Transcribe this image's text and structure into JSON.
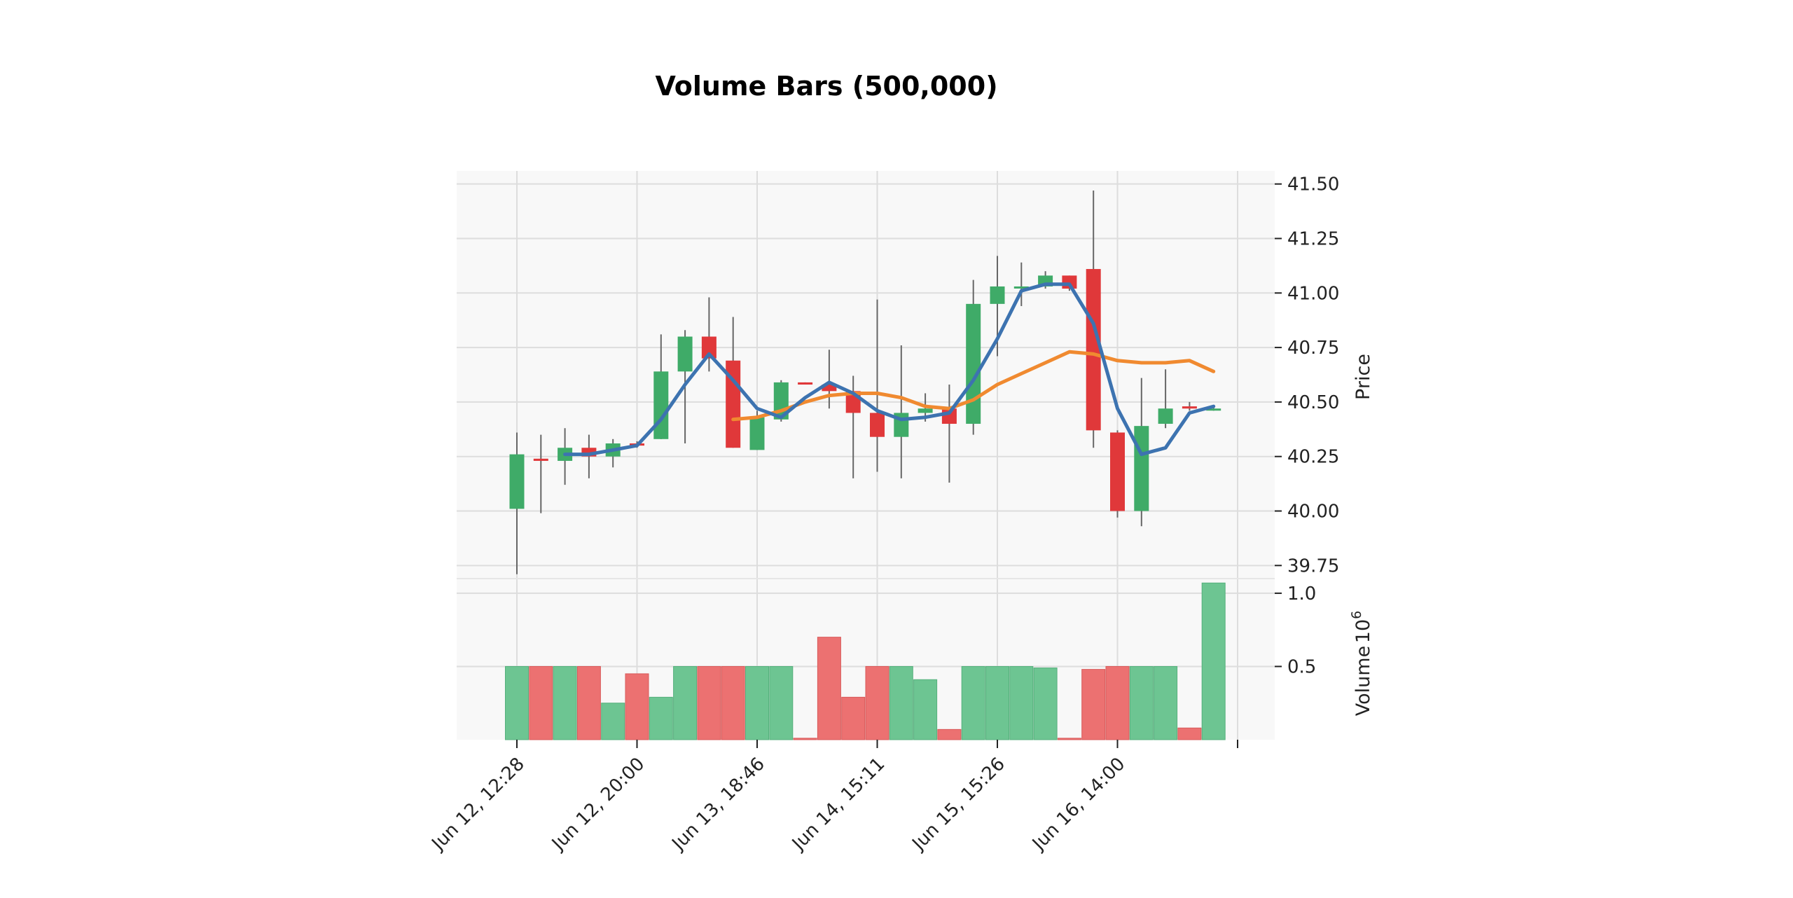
{
  "chart_data": {
    "type": "candlestick",
    "title": "Volume Bars (500,000)",
    "price_ylabel": "Price",
    "volume_ylabel": "Volume",
    "volume_exponent": "10",
    "volume_exponent_power": "6",
    "price_ylim": [
      39.69,
      41.56
    ],
    "price_ticks": [
      "39.75",
      "40.00",
      "40.25",
      "40.50",
      "40.75",
      "41.00",
      "41.25",
      "41.50"
    ],
    "volume_ylim": [
      0,
      1.1
    ],
    "volume_ticks": [
      "0.5",
      "1.0"
    ],
    "x_tick_labels": [
      "Jun 12, 12:28",
      "Jun 12, 20:00",
      "Jun 13, 18:46",
      "Jun 14, 15:11",
      "Jun 15, 15:26",
      "Jun 16, 14:00"
    ],
    "x_tick_bar_index": [
      0,
      5,
      10,
      15,
      20,
      25
    ],
    "grid": true,
    "colors": {
      "up": "#3fab68",
      "down": "#e0383a",
      "up_volume": "#6dc592",
      "down_volume": "#ec7171",
      "ma_short": "#3d73b0",
      "ma_long": "#f08a30",
      "wick": "#666666",
      "axes_bg": "#f8f8f8",
      "grid": "#dddddd"
    },
    "candles": [
      {
        "o": 40.01,
        "h": 40.36,
        "l": 39.71,
        "c": 40.26,
        "v": 0.5
      },
      {
        "o": 40.24,
        "h": 40.35,
        "l": 39.99,
        "c": 40.23,
        "v": 0.5
      },
      {
        "o": 40.23,
        "h": 40.38,
        "l": 40.12,
        "c": 40.29,
        "v": 0.5
      },
      {
        "o": 40.29,
        "h": 40.35,
        "l": 40.15,
        "c": 40.25,
        "v": 0.5
      },
      {
        "o": 40.25,
        "h": 40.33,
        "l": 40.2,
        "c": 40.31,
        "v": 0.25
      },
      {
        "o": 40.31,
        "h": 40.32,
        "l": 40.29,
        "c": 40.3,
        "v": 0.45
      },
      {
        "o": 40.33,
        "h": 40.81,
        "l": 40.33,
        "c": 40.64,
        "v": 0.29
      },
      {
        "o": 40.64,
        "h": 40.83,
        "l": 40.31,
        "c": 40.8,
        "v": 0.5
      },
      {
        "o": 40.8,
        "h": 40.98,
        "l": 40.64,
        "c": 40.7,
        "v": 0.5
      },
      {
        "o": 40.69,
        "h": 40.89,
        "l": 40.29,
        "c": 40.29,
        "v": 0.5
      },
      {
        "o": 40.28,
        "h": 40.46,
        "l": 40.28,
        "c": 40.43,
        "v": 0.5
      },
      {
        "o": 40.42,
        "h": 40.6,
        "l": 40.41,
        "c": 40.59,
        "v": 0.5
      },
      {
        "o": 40.59,
        "h": 40.59,
        "l": 40.58,
        "c": 40.58,
        "v": 0.01
      },
      {
        "o": 40.58,
        "h": 40.74,
        "l": 40.47,
        "c": 40.55,
        "v": 0.7
      },
      {
        "o": 40.55,
        "h": 40.62,
        "l": 40.15,
        "c": 40.45,
        "v": 0.29
      },
      {
        "o": 40.45,
        "h": 40.97,
        "l": 40.18,
        "c": 40.34,
        "v": 0.5
      },
      {
        "o": 40.34,
        "h": 40.76,
        "l": 40.15,
        "c": 40.45,
        "v": 0.5
      },
      {
        "o": 40.45,
        "h": 40.54,
        "l": 40.41,
        "c": 40.47,
        "v": 0.41
      },
      {
        "o": 40.47,
        "h": 40.58,
        "l": 40.13,
        "c": 40.4,
        "v": 0.07
      },
      {
        "o": 40.4,
        "h": 41.06,
        "l": 40.35,
        "c": 40.95,
        "v": 0.5
      },
      {
        "o": 40.95,
        "h": 41.17,
        "l": 40.71,
        "c": 41.03,
        "v": 0.5
      },
      {
        "o": 41.03,
        "h": 41.14,
        "l": 40.94,
        "c": 41.03,
        "v": 0.5
      },
      {
        "o": 41.03,
        "h": 41.1,
        "l": 41.02,
        "c": 41.08,
        "v": 0.49
      },
      {
        "o": 41.08,
        "h": 41.08,
        "l": 41.01,
        "c": 41.02,
        "v": 0.01
      },
      {
        "o": 41.11,
        "h": 41.47,
        "l": 40.29,
        "c": 40.37,
        "v": 0.48
      },
      {
        "o": 40.36,
        "h": 40.37,
        "l": 39.97,
        "c": 40.0,
        "v": 0.5
      },
      {
        "o": 40.0,
        "h": 40.61,
        "l": 39.93,
        "c": 40.39,
        "v": 0.5
      },
      {
        "o": 40.4,
        "h": 40.65,
        "l": 40.38,
        "c": 40.47,
        "v": 0.5
      },
      {
        "o": 40.48,
        "h": 40.5,
        "l": 40.46,
        "c": 40.47,
        "v": 0.08
      },
      {
        "o": 40.47,
        "h": 40.48,
        "l": 40.46,
        "c": 40.47,
        "v": 1.07
      }
    ],
    "ma_short_values": [
      null,
      null,
      40.26,
      40.26,
      40.28,
      40.3,
      40.42,
      40.58,
      40.72,
      40.6,
      40.47,
      40.43,
      40.52,
      40.59,
      40.54,
      40.46,
      40.42,
      40.43,
      40.45,
      40.6,
      40.79,
      41.01,
      41.04,
      41.04,
      40.86,
      40.47,
      40.26,
      40.29,
      40.45,
      40.48
    ],
    "ma_long_values": [
      null,
      null,
      null,
      null,
      null,
      null,
      null,
      null,
      null,
      40.42,
      40.43,
      40.46,
      40.5,
      40.53,
      40.54,
      40.54,
      40.52,
      40.48,
      40.47,
      40.51,
      40.58,
      40.63,
      40.68,
      40.73,
      40.72,
      40.69,
      40.68,
      40.68,
      40.69,
      40.64
    ]
  }
}
